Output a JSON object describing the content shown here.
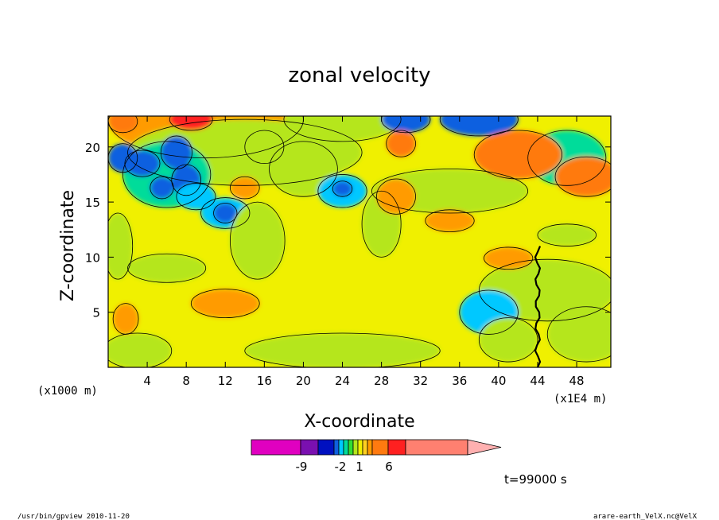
{
  "chart_data": {
    "type": "heatmap",
    "title": "zonal velocity",
    "xlabel": "X-coordinate",
    "ylabel": "Z-coordinate",
    "x_unit_left": "(x1000 m)",
    "x_unit_right": "(x1E4 m)",
    "xlim": [
      0,
      51.5
    ],
    "ylim": [
      0,
      22.8
    ],
    "x_ticks": [
      4,
      8,
      12,
      16,
      20,
      24,
      28,
      32,
      36,
      40,
      44,
      48
    ],
    "y_ticks": [
      5,
      10,
      15,
      20
    ],
    "x_tick_labels": [
      "4",
      "8",
      "12",
      "16",
      "20",
      "24",
      "28",
      "32",
      "36",
      "40",
      "44",
      "48"
    ],
    "y_tick_labels": [
      "5",
      "10",
      "15",
      "20"
    ],
    "colorbar": {
      "levels": [
        -12,
        -9,
        -7,
        -5,
        -3,
        -2,
        -1,
        0,
        1,
        2,
        4,
        6,
        8,
        16
      ],
      "colors": [
        "#e000c0",
        "#7a10b0",
        "#0010c0",
        "#1060e0",
        "#00c8ff",
        "#00dc9a",
        "#33dd33",
        "#b5e61d",
        "#f0f000",
        "#ffd020",
        "#ff9b00",
        "#ff7a10",
        "#ff2020",
        "#ff8070",
        "#ffb0b0"
      ],
      "labels": [
        "-9",
        "-2",
        "1",
        "6"
      ],
      "label_values": [
        -9,
        -2,
        1,
        6
      ]
    },
    "grid": false,
    "legend": "none"
  },
  "annotations": {
    "time_label": "t=99000 s",
    "footer_left": "/usr/bin/gpview  2010-11-20",
    "footer_right": "arare-earth_VelX.nc@VelX"
  }
}
